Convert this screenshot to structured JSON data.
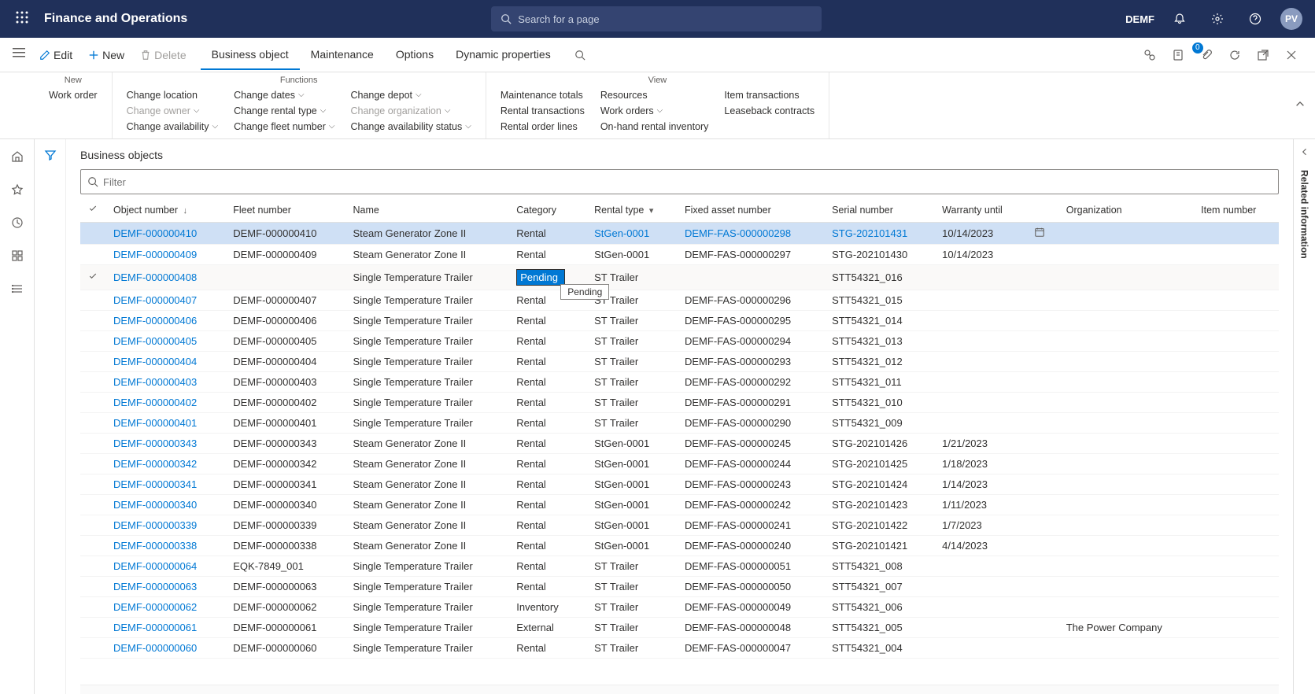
{
  "header": {
    "app_title": "Finance and Operations",
    "search_placeholder": "Search for a page",
    "legal_entity": "DEMF",
    "avatar_initials": "PV"
  },
  "action_pane": {
    "edit": "Edit",
    "new": "New",
    "delete": "Delete",
    "tabs": [
      "Business object",
      "Maintenance",
      "Options",
      "Dynamic properties"
    ],
    "active_tab": 0,
    "attachment_count": "0"
  },
  "ribbon": {
    "groups": [
      {
        "title": "New",
        "cols": [
          [
            "Work order"
          ]
        ]
      },
      {
        "title": "Functions",
        "cols": [
          [
            {
              "label": "Change location",
              "chev": false
            },
            {
              "label": "Change owner",
              "chev": true,
              "disabled": true
            },
            {
              "label": "Change availability",
              "chev": true
            }
          ],
          [
            {
              "label": "Change dates",
              "chev": true
            },
            {
              "label": "Change rental type",
              "chev": true
            },
            {
              "label": "Change fleet number",
              "chev": true
            }
          ],
          [
            {
              "label": "Change depot",
              "chev": true
            },
            {
              "label": "Change organization",
              "chev": true,
              "disabled": true
            },
            {
              "label": "Change availability status",
              "chev": true
            }
          ]
        ]
      },
      {
        "title": "View",
        "cols": [
          [
            {
              "label": "Maintenance totals"
            },
            {
              "label": "Rental transactions"
            },
            {
              "label": "Rental order lines"
            }
          ],
          [
            {
              "label": "Resources"
            },
            {
              "label": "Work orders",
              "chev": true
            },
            {
              "label": "On-hand rental inventory"
            }
          ],
          [
            {
              "label": "Item transactions"
            },
            {
              "label": "Leaseback contracts"
            }
          ]
        ]
      }
    ]
  },
  "page": {
    "heading": "Business objects",
    "filter_placeholder": "Filter"
  },
  "table": {
    "columns": [
      "Object number",
      "Fleet number",
      "Name",
      "Category",
      "Rental type",
      "Fixed asset number",
      "Serial number",
      "Warranty until",
      "",
      "Organization",
      "Item number"
    ],
    "sorted_col": 0,
    "filtered_col": 4,
    "editing_row_index": 2,
    "editing_value": "Pending",
    "tooltip_value": "Pending",
    "rows": [
      {
        "selected": true,
        "obj": "DEMF-000000410",
        "fleet": "DEMF-000000410",
        "name": "Steam Generator Zone II",
        "cat": "Rental",
        "rtype": "StGen-0001",
        "fixed": "DEMF-FAS-000000298",
        "serial": "STG-202101431",
        "warranty": "10/14/2023",
        "date_icon": true,
        "org": "",
        "item": ""
      },
      {
        "obj": "DEMF-000000409",
        "fleet": "DEMF-000000409",
        "name": "Steam Generator Zone II",
        "cat": "Rental",
        "rtype": "StGen-0001",
        "fixed": "DEMF-FAS-000000297",
        "serial": "STG-202101430",
        "warranty": "10/14/2023",
        "org": "",
        "item": ""
      },
      {
        "editing": true,
        "obj": "DEMF-000000408",
        "fleet": "",
        "name": "Single Temperature Trailer",
        "cat": "",
        "rtype": "ST Trailer",
        "fixed": "",
        "serial": "STT54321_016",
        "warranty": "",
        "org": "",
        "item": ""
      },
      {
        "obj": "DEMF-000000407",
        "fleet": "DEMF-000000407",
        "name": "Single Temperature Trailer",
        "cat": "Rental",
        "rtype": "ST Trailer",
        "fixed": "DEMF-FAS-000000296",
        "serial": "STT54321_015",
        "warranty": "",
        "org": "",
        "item": ""
      },
      {
        "obj": "DEMF-000000406",
        "fleet": "DEMF-000000406",
        "name": "Single Temperature Trailer",
        "cat": "Rental",
        "rtype": "ST Trailer",
        "fixed": "DEMF-FAS-000000295",
        "serial": "STT54321_014",
        "warranty": "",
        "org": "",
        "item": ""
      },
      {
        "obj": "DEMF-000000405",
        "fleet": "DEMF-000000405",
        "name": "Single Temperature Trailer",
        "cat": "Rental",
        "rtype": "ST Trailer",
        "fixed": "DEMF-FAS-000000294",
        "serial": "STT54321_013",
        "warranty": "",
        "org": "",
        "item": ""
      },
      {
        "obj": "DEMF-000000404",
        "fleet": "DEMF-000000404",
        "name": "Single Temperature Trailer",
        "cat": "Rental",
        "rtype": "ST Trailer",
        "fixed": "DEMF-FAS-000000293",
        "serial": "STT54321_012",
        "warranty": "",
        "org": "",
        "item": ""
      },
      {
        "obj": "DEMF-000000403",
        "fleet": "DEMF-000000403",
        "name": "Single Temperature Trailer",
        "cat": "Rental",
        "rtype": "ST Trailer",
        "fixed": "DEMF-FAS-000000292",
        "serial": "STT54321_011",
        "warranty": "",
        "org": "",
        "item": ""
      },
      {
        "obj": "DEMF-000000402",
        "fleet": "DEMF-000000402",
        "name": "Single Temperature Trailer",
        "cat": "Rental",
        "rtype": "ST Trailer",
        "fixed": "DEMF-FAS-000000291",
        "serial": "STT54321_010",
        "warranty": "",
        "org": "",
        "item": ""
      },
      {
        "obj": "DEMF-000000401",
        "fleet": "DEMF-000000401",
        "name": "Single Temperature Trailer",
        "cat": "Rental",
        "rtype": "ST Trailer",
        "fixed": "DEMF-FAS-000000290",
        "serial": "STT54321_009",
        "warranty": "",
        "org": "",
        "item": ""
      },
      {
        "obj": "DEMF-000000343",
        "fleet": "DEMF-000000343",
        "name": "Steam Generator Zone II",
        "cat": "Rental",
        "rtype": "StGen-0001",
        "fixed": "DEMF-FAS-000000245",
        "serial": "STG-202101426",
        "warranty": "1/21/2023",
        "org": "",
        "item": ""
      },
      {
        "obj": "DEMF-000000342",
        "fleet": "DEMF-000000342",
        "name": "Steam Generator Zone II",
        "cat": "Rental",
        "rtype": "StGen-0001",
        "fixed": "DEMF-FAS-000000244",
        "serial": "STG-202101425",
        "warranty": "1/18/2023",
        "org": "",
        "item": ""
      },
      {
        "obj": "DEMF-000000341",
        "fleet": "DEMF-000000341",
        "name": "Steam Generator Zone II",
        "cat": "Rental",
        "rtype": "StGen-0001",
        "fixed": "DEMF-FAS-000000243",
        "serial": "STG-202101424",
        "warranty": "1/14/2023",
        "org": "",
        "item": ""
      },
      {
        "obj": "DEMF-000000340",
        "fleet": "DEMF-000000340",
        "name": "Steam Generator Zone II",
        "cat": "Rental",
        "rtype": "StGen-0001",
        "fixed": "DEMF-FAS-000000242",
        "serial": "STG-202101423",
        "warranty": "1/11/2023",
        "org": "",
        "item": ""
      },
      {
        "obj": "DEMF-000000339",
        "fleet": "DEMF-000000339",
        "name": "Steam Generator Zone II",
        "cat": "Rental",
        "rtype": "StGen-0001",
        "fixed": "DEMF-FAS-000000241",
        "serial": "STG-202101422",
        "warranty": "1/7/2023",
        "org": "",
        "item": ""
      },
      {
        "obj": "DEMF-000000338",
        "fleet": "DEMF-000000338",
        "name": "Steam Generator Zone II",
        "cat": "Rental",
        "rtype": "StGen-0001",
        "fixed": "DEMF-FAS-000000240",
        "serial": "STG-202101421",
        "warranty": "4/14/2023",
        "org": "",
        "item": ""
      },
      {
        "obj": "DEMF-000000064",
        "fleet": "EQK-7849_001",
        "name": "Single Temperature Trailer",
        "cat": "Rental",
        "rtype": "ST Trailer",
        "fixed": "DEMF-FAS-000000051",
        "serial": "STT54321_008",
        "warranty": "",
        "org": "",
        "item": ""
      },
      {
        "obj": "DEMF-000000063",
        "fleet": "DEMF-000000063",
        "name": "Single Temperature Trailer",
        "cat": "Rental",
        "rtype": "ST Trailer",
        "fixed": "DEMF-FAS-000000050",
        "serial": "STT54321_007",
        "warranty": "",
        "org": "",
        "item": ""
      },
      {
        "obj": "DEMF-000000062",
        "fleet": "DEMF-000000062",
        "name": "Single Temperature Trailer",
        "cat": "Inventory",
        "rtype": "ST Trailer",
        "fixed": "DEMF-FAS-000000049",
        "serial": "STT54321_006",
        "warranty": "",
        "org": "",
        "item": ""
      },
      {
        "obj": "DEMF-000000061",
        "fleet": "DEMF-000000061",
        "name": "Single Temperature Trailer",
        "cat": "External",
        "rtype": "ST Trailer",
        "fixed": "DEMF-FAS-000000048",
        "serial": "STT54321_005",
        "warranty": "",
        "org": "The Power Company",
        "item": ""
      },
      {
        "obj": "DEMF-000000060",
        "fleet": "DEMF-000000060",
        "name": "Single Temperature Trailer",
        "cat": "Rental",
        "rtype": "ST Trailer",
        "fixed": "DEMF-FAS-000000047",
        "serial": "STT54321_004",
        "warranty": "",
        "org": "",
        "item": ""
      }
    ]
  },
  "related_info_label": "Related information"
}
